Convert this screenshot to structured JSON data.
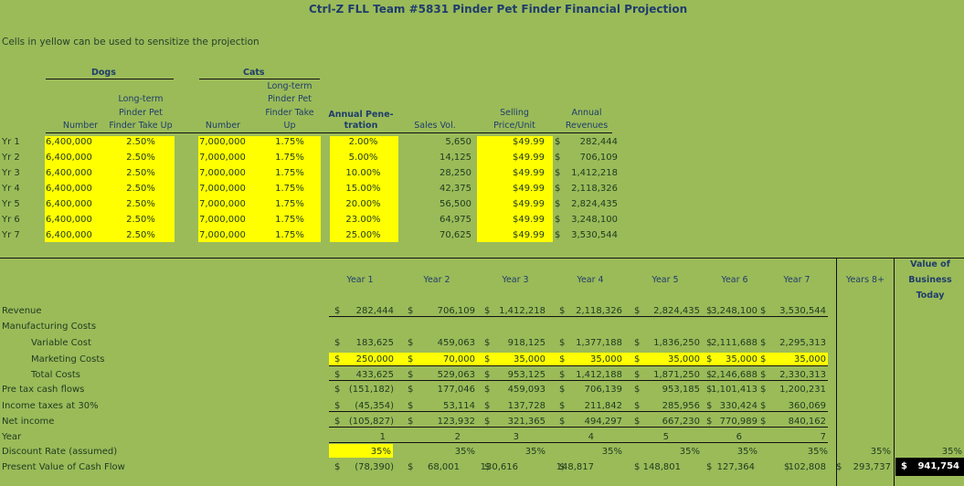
{
  "title": "Ctrl-Z FLL Team #5831 Pinder Pet Finder Financial Projection",
  "note": "Cells in yellow can be used to sensitize the projection",
  "top": {
    "group_dogs": "Dogs",
    "group_cats": "Cats",
    "headers": {
      "dog_number": "Number",
      "dog_takeup": [
        "Long-term",
        "Pinder Pet",
        "Finder Take Up"
      ],
      "cat_number": "Number",
      "cat_takeup": [
        "Long-term",
        "Pinder Pet",
        "Finder Take",
        "Up"
      ],
      "penetration": [
        "Annual Pene-",
        "tration"
      ],
      "sales_vol": "Sales Vol.",
      "price": [
        "Selling",
        "Price/Unit"
      ],
      "revenues": [
        "Annual",
        "Revenues"
      ]
    },
    "rows": [
      {
        "yr": "Yr 1",
        "dogs": "6,400,000",
        "dog_take": "2.50%",
        "cats": "7,000,000",
        "cat_take": "1.75%",
        "pen": "2.00%",
        "vol": "5,650",
        "price": "$49.99",
        "cur": "$",
        "rev": "282,444"
      },
      {
        "yr": "Yr 2",
        "dogs": "6,400,000",
        "dog_take": "2.50%",
        "cats": "7,000,000",
        "cat_take": "1.75%",
        "pen": "5.00%",
        "vol": "14,125",
        "price": "$49.99",
        "cur": "$",
        "rev": "706,109"
      },
      {
        "yr": "Yr 3",
        "dogs": "6,400,000",
        "dog_take": "2.50%",
        "cats": "7,000,000",
        "cat_take": "1.75%",
        "pen": "10.00%",
        "vol": "28,250",
        "price": "$49.99",
        "cur": "$",
        "rev": "1,412,218"
      },
      {
        "yr": "Yr 4",
        "dogs": "6,400,000",
        "dog_take": "2.50%",
        "cats": "7,000,000",
        "cat_take": "1.75%",
        "pen": "15.00%",
        "vol": "42,375",
        "price": "$49.99",
        "cur": "$",
        "rev": "2,118,326"
      },
      {
        "yr": "Yr 5",
        "dogs": "6,400,000",
        "dog_take": "2.50%",
        "cats": "7,000,000",
        "cat_take": "1.75%",
        "pen": "20.00%",
        "vol": "56,500",
        "price": "$49.99",
        "cur": "$",
        "rev": "2,824,435"
      },
      {
        "yr": "Yr 6",
        "dogs": "6,400,000",
        "dog_take": "2.50%",
        "cats": "7,000,000",
        "cat_take": "1.75%",
        "pen": "23.00%",
        "vol": "64,975",
        "price": "$49.99",
        "cur": "$",
        "rev": "3,248,100"
      },
      {
        "yr": "Yr 7",
        "dogs": "6,400,000",
        "dog_take": "2.50%",
        "cats": "7,000,000",
        "cat_take": "1.75%",
        "pen": "25.00%",
        "vol": "70,625",
        "price": "$49.99",
        "cur": "$",
        "rev": "3,530,544"
      }
    ]
  },
  "bottom": {
    "years": [
      "Year 1",
      "Year 2",
      "Year 3",
      "Year 4",
      "Year 5",
      "Year 6",
      "Year 7"
    ],
    "years8": "Years 8+",
    "value_header": [
      "Value of",
      "Business",
      "Today"
    ],
    "labels": {
      "revenue": "Revenue",
      "mfg": "Manufacturing Costs",
      "variable": "Variable Cost",
      "marketing": "Marketing Costs",
      "total": "Total Costs",
      "pretax": "Pre tax cash flows",
      "taxes": "Income taxes at 30%",
      "net": "Net income",
      "year": "Year",
      "discount": "Discount Rate (assumed)",
      "pv": "Present Value of Cash Flow"
    },
    "cur": "$",
    "revenue": [
      "282,444",
      "706,109",
      "1,412,218",
      "2,118,326",
      "2,824,435",
      "3,248,100",
      "3,530,544"
    ],
    "variable": [
      "183,625",
      "459,063",
      "918,125",
      "1,377,188",
      "1,836,250",
      "2,111,688",
      "2,295,313"
    ],
    "marketing": [
      "250,000",
      "70,000",
      "35,000",
      "35,000",
      "35,000",
      "35,000",
      "35,000"
    ],
    "total": [
      "433,625",
      "529,063",
      "953,125",
      "1,412,188",
      "1,871,250",
      "2,146,688",
      "2,330,313"
    ],
    "pretax": [
      "(151,182)",
      "177,046",
      "459,093",
      "706,139",
      "953,185",
      "1,101,413",
      "1,200,231"
    ],
    "taxes": [
      "(45,354)",
      "53,114",
      "137,728",
      "211,842",
      "285,956",
      "330,424",
      "360,069"
    ],
    "net": [
      "(105,827)",
      "123,932",
      "321,365",
      "494,297",
      "667,230",
      "770,989",
      "840,162"
    ],
    "year_nums": [
      "1",
      "2",
      "3",
      "4",
      "5",
      "6",
      "7"
    ],
    "discount": [
      "35%",
      "35%",
      "35%",
      "35%",
      "35%",
      "35%",
      "35%",
      "35%",
      "35%"
    ],
    "pv": [
      "(78,390)",
      "68,001",
      "130,616",
      "148,817",
      "148,801",
      "127,364",
      "102,808",
      "293,737"
    ],
    "value_today": "941,754"
  }
}
